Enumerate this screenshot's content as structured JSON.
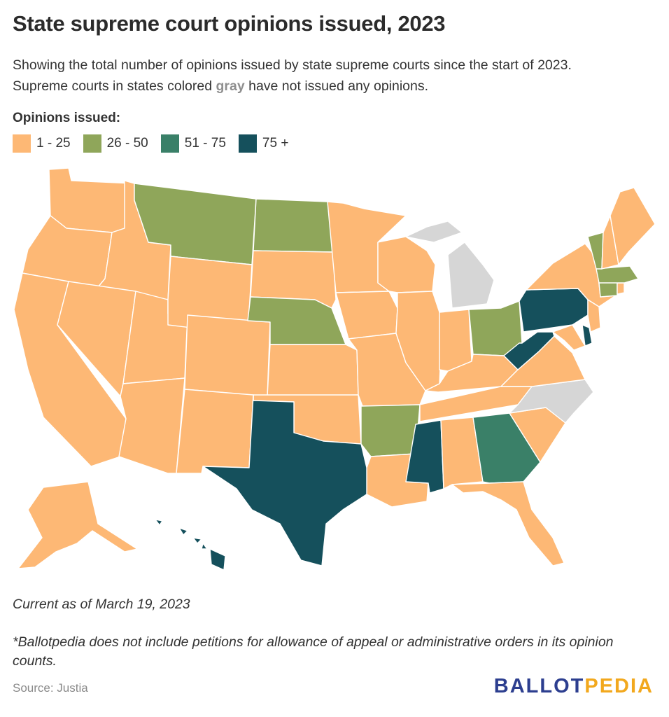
{
  "title": "State supreme court opinions issued, 2023",
  "subtitle": {
    "line1": "Showing the total number of opinions issued by state supreme courts since the start of 2023.",
    "line2_before": "Supreme courts in states colored ",
    "line2_gray": "gray",
    "line2_after": " have not issued any opinions."
  },
  "legend": {
    "title": "Opinions issued:",
    "items": [
      {
        "label": "1 - 25",
        "color": "#FDB875"
      },
      {
        "label": "26 - 50",
        "color": "#8FA65A"
      },
      {
        "label": "51 - 75",
        "color": "#3A8068"
      },
      {
        "label": "75 +",
        "color": "#15505C"
      }
    ],
    "no_opinions_color": "#D6D6D6"
  },
  "map_categories": {
    "none": [
      "MI",
      "NC"
    ],
    "1-25": [
      "WA",
      "OR",
      "CA",
      "ID",
      "NV",
      "UT",
      "AZ",
      "WY",
      "CO",
      "NM",
      "SD",
      "MN",
      "IA",
      "WI",
      "IL",
      "MO",
      "KS",
      "OK",
      "LA",
      "IN",
      "KY",
      "TN",
      "AL",
      "SC",
      "FL",
      "VA",
      "MD",
      "NJ",
      "NY",
      "ME",
      "NH",
      "RI",
      "AK"
    ],
    "26-50": [
      "MT",
      "ND",
      "NE",
      "AR",
      "OH",
      "VT",
      "MA",
      "CT"
    ],
    "51-75": [
      "GA"
    ],
    "75+": [
      "TX",
      "MS",
      "PA",
      "WV",
      "DE",
      "HI"
    ]
  },
  "current": "Current as of March 19, 2023",
  "note": "*Ballotpedia does not include petitions for allowance of appeal or administrative orders in its opinion counts.",
  "source": "Source: Justia",
  "brand": {
    "part1": "BALLOT",
    "part2": "PEDIA"
  }
}
